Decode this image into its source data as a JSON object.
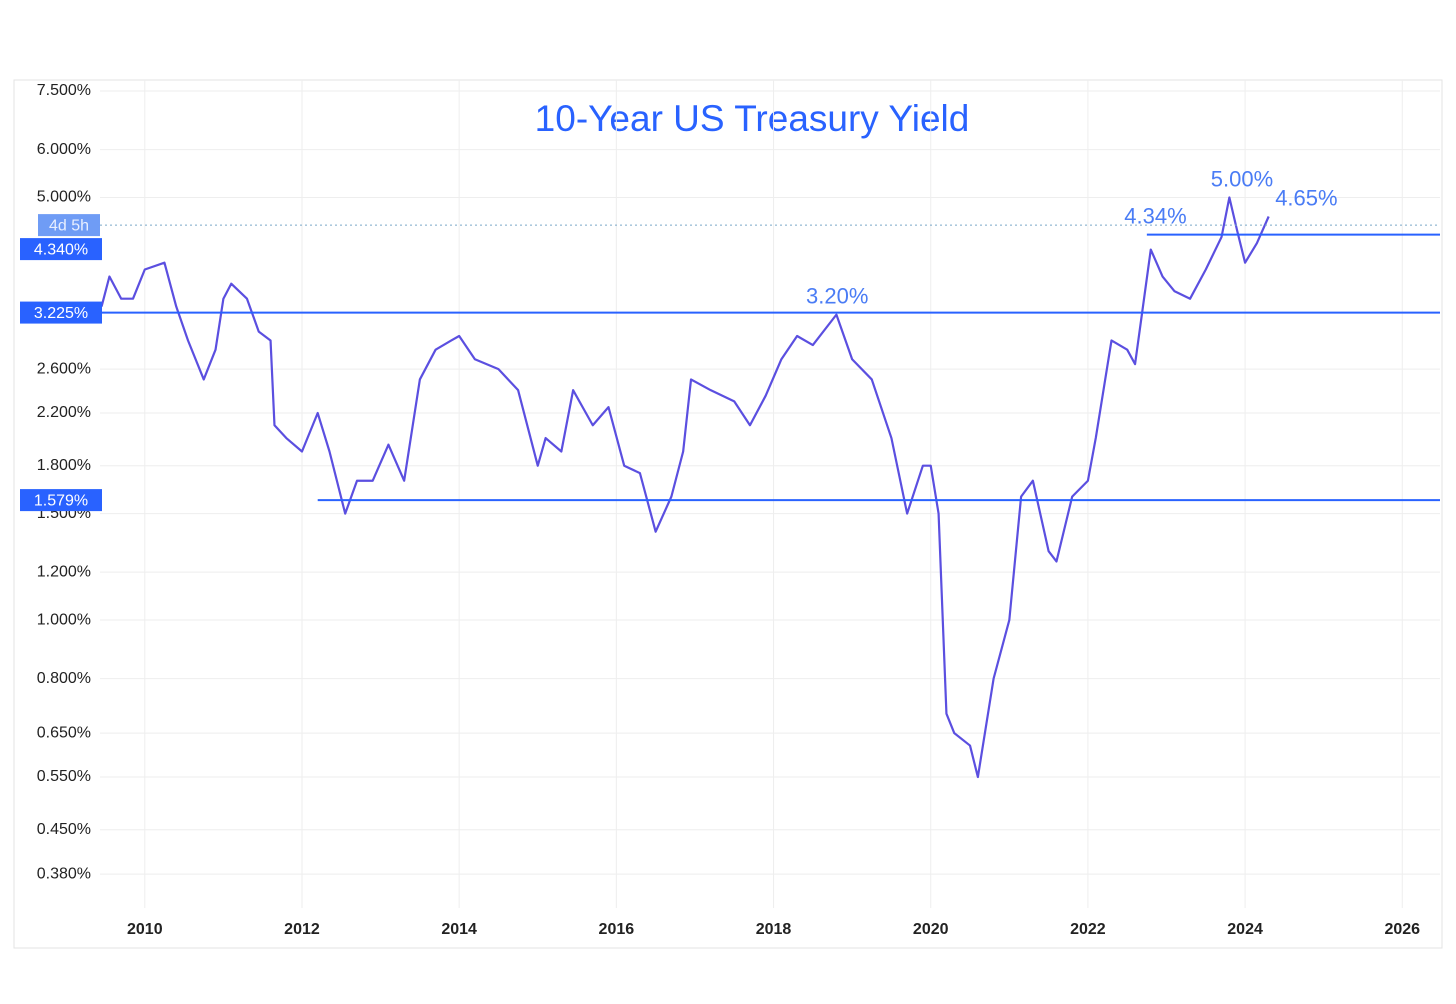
{
  "chart_data": {
    "type": "line",
    "title": "10-Year US Treasury Yield",
    "log_scale": true,
    "grid": true,
    "xlim": [
      2009.43,
      2026.48
    ],
    "xticks": [
      2010,
      2012,
      2014,
      2016,
      2018,
      2020,
      2022,
      2024,
      2026
    ],
    "ylim": [
      0.334,
      7.82
    ],
    "yticks": [
      {
        "value": 7.5,
        "label": "7.500%"
      },
      {
        "value": 6,
        "label": "6.000%"
      },
      {
        "value": 5,
        "label": "5.000%"
      },
      {
        "value": 2.6,
        "label": "2.600%"
      },
      {
        "value": 2.2,
        "label": "2.200%"
      },
      {
        "value": 1.8,
        "label": "1.800%"
      },
      {
        "value": 1.5,
        "label": "1.500%"
      },
      {
        "value": 1.2,
        "label": "1.200%"
      },
      {
        "value": 1,
        "label": "1.000%"
      },
      {
        "value": 0.8,
        "label": "0.800%"
      },
      {
        "value": 0.65,
        "label": "0.650%"
      },
      {
        "value": 0.55,
        "label": "0.550%"
      },
      {
        "value": 0.45,
        "label": "0.450%"
      },
      {
        "value": 0.38,
        "label": "0.380%"
      }
    ],
    "series": [
      {
        "color": "#5b4fe0",
        "x": [
          2009.45,
          2009.55,
          2009.7,
          2009.85,
          2010.0,
          2010.25,
          2010.4,
          2010.55,
          2010.75,
          2010.9,
          2011.0,
          2011.1,
          2011.3,
          2011.45,
          2011.6,
          2011.65,
          2011.8,
          2012.0,
          2012.2,
          2012.35,
          2012.55,
          2012.7,
          2012.9,
          2013.1,
          2013.3,
          2013.5,
          2013.7,
          2013.9,
          2014.0,
          2014.2,
          2014.5,
          2014.75,
          2015.0,
          2015.1,
          2015.3,
          2015.45,
          2015.7,
          2015.9,
          2016.1,
          2016.3,
          2016.5,
          2016.7,
          2016.85,
          2016.95,
          2017.2,
          2017.5,
          2017.7,
          2017.9,
          2018.1,
          2018.3,
          2018.5,
          2018.8,
          2019.0,
          2019.25,
          2019.5,
          2019.7,
          2019.9,
          2020.0,
          2020.1,
          2020.2,
          2020.3,
          2020.5,
          2020.6,
          2020.8,
          2021.0,
          2021.15,
          2021.3,
          2021.5,
          2021.6,
          2021.8,
          2022.0,
          2022.1,
          2022.3,
          2022.5,
          2022.6,
          2022.8,
          2022.95,
          2023.1,
          2023.3,
          2023.5,
          2023.7,
          2023.8,
          2023.9,
          2024.0,
          2024.15,
          2024.3
        ],
        "values": [
          3.3,
          3.7,
          3.4,
          3.4,
          3.8,
          3.9,
          3.3,
          2.9,
          2.5,
          2.8,
          3.4,
          3.6,
          3.4,
          3.0,
          2.9,
          2.1,
          2.0,
          1.9,
          2.2,
          1.9,
          1.5,
          1.7,
          1.7,
          1.95,
          1.7,
          2.5,
          2.8,
          2.9,
          2.95,
          2.7,
          2.6,
          2.4,
          1.8,
          2.0,
          1.9,
          2.4,
          2.1,
          2.25,
          1.8,
          1.75,
          1.4,
          1.6,
          1.9,
          2.5,
          2.4,
          2.3,
          2.1,
          2.35,
          2.7,
          2.95,
          2.85,
          3.2,
          2.7,
          2.5,
          2.0,
          1.5,
          1.8,
          1.8,
          1.5,
          0.7,
          0.65,
          0.62,
          0.55,
          0.8,
          1.0,
          1.6,
          1.7,
          1.3,
          1.25,
          1.6,
          1.7,
          2.0,
          2.9,
          2.8,
          2.65,
          4.1,
          3.7,
          3.5,
          3.4,
          3.8,
          4.3,
          5.0,
          4.4,
          3.9,
          4.2,
          4.65
        ]
      }
    ],
    "levels": [
      {
        "value": 4.34,
        "label": "4.340%",
        "start": 2022.75,
        "color": "#2962ff"
      },
      {
        "value": 3.225,
        "label": "3.225%",
        "start": 2009.43,
        "color": "#2962ff"
      },
      {
        "value": 1.579,
        "label": "1.579%",
        "start": 2012.2,
        "color": "#2962ff"
      }
    ],
    "price_line": {
      "value": 4.5,
      "label": "4d 5h"
    },
    "annotations": [
      {
        "label": "3.20%",
        "value": 3.2,
        "x": 2018.81
      },
      {
        "label": "4.34%",
        "value": 4.34,
        "x": 2022.86
      },
      {
        "label": "5.00%",
        "value": 5.0,
        "x": 2023.96
      },
      {
        "label": "4.65%",
        "value": 4.65,
        "x": 2024.78
      }
    ]
  }
}
